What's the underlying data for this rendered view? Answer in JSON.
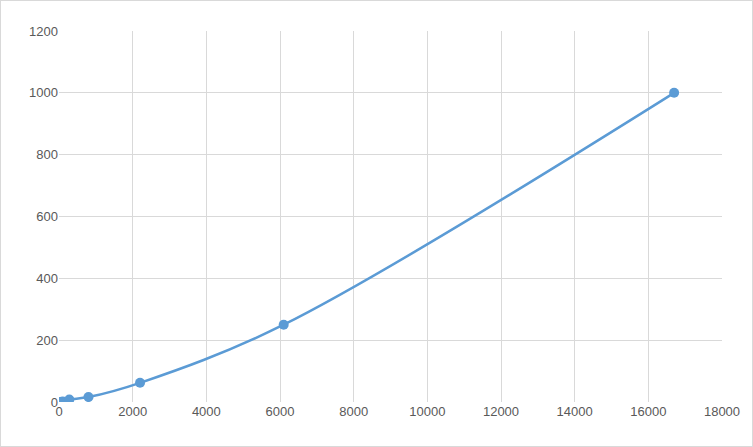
{
  "chart_data": {
    "type": "line",
    "x": [
      30,
      100,
      280,
      800,
      2200,
      6100,
      16700
    ],
    "values": [
      0,
      2,
      8,
      16,
      62,
      250,
      1000
    ],
    "color": "#5b9bd5",
    "marker": "circle",
    "line_style": "spline",
    "xlim": [
      0,
      18000
    ],
    "xticks": [
      0,
      2000,
      4000,
      6000,
      8000,
      10000,
      12000,
      14000,
      16000,
      18000
    ],
    "ylim": [
      0,
      1200
    ],
    "yticks": [
      0,
      200,
      400,
      600,
      800,
      1000,
      1200
    ],
    "grid": true
  }
}
